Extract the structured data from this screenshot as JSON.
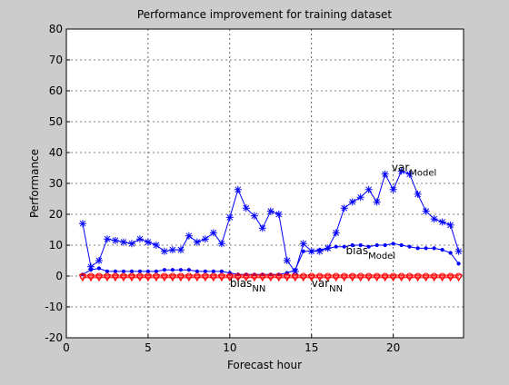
{
  "chart_data": {
    "type": "line",
    "title": "Performance improvement for training dataset",
    "x_label": "Forecast hour",
    "y_label": "Performance",
    "x": [
      1,
      1.5,
      2,
      2.5,
      3,
      3.5,
      4,
      4.5,
      5,
      5.5,
      6,
      6.5,
      7,
      7.5,
      8,
      8.5,
      9,
      9.5,
      10,
      10.5,
      11,
      11.5,
      12,
      12.5,
      13,
      13.5,
      14,
      14.5,
      15,
      15.5,
      16,
      16.5,
      17,
      17.5,
      18,
      18.5,
      19,
      19.5,
      20,
      20.5,
      21,
      21.5,
      22,
      22.5,
      23,
      23.5,
      24
    ],
    "series": [
      {
        "name": "var_Model",
        "color": "#0000ff",
        "marker": "star",
        "values": [
          17,
          3,
          5,
          12,
          11.5,
          11,
          10.5,
          12,
          11,
          10,
          8,
          8.5,
          8.5,
          13,
          11,
          12,
          14,
          10.5,
          19,
          28,
          22,
          19.5,
          15.5,
          21,
          20,
          5,
          1.5,
          10.5,
          8,
          8,
          9,
          14,
          22,
          24,
          25.5,
          28,
          24,
          33,
          28,
          34,
          33,
          26.5,
          21,
          18.5,
          17.5,
          16.5,
          8
        ]
      },
      {
        "name": "bias_Model",
        "color": "#0000ff",
        "marker": "dot",
        "values": [
          0.5,
          2,
          2.5,
          1.5,
          1.5,
          1.5,
          1.5,
          1.5,
          1.5,
          1.5,
          2,
          2,
          2,
          2,
          1.5,
          1.5,
          1.5,
          1.5,
          1,
          0.5,
          0.5,
          0.5,
          0.5,
          0.5,
          0.5,
          1,
          2,
          8,
          8,
          8.5,
          9,
          9.5,
          9.5,
          10,
          10,
          9.5,
          10,
          10,
          10.5,
          10,
          9.5,
          9,
          9,
          9,
          8.5,
          7.5,
          4
        ]
      },
      {
        "name": "var_NN",
        "color": "#ff0000",
        "marker": "triangle-down",
        "values": [
          -0.5,
          -0.5,
          -0.5,
          -0.5,
          -0.5,
          -0.5,
          -0.5,
          -0.5,
          -0.5,
          -0.5,
          -0.5,
          -0.5,
          -0.5,
          -0.5,
          -0.5,
          -0.5,
          -0.5,
          -0.5,
          -0.5,
          -0.5,
          -0.5,
          -0.5,
          -0.5,
          -0.5,
          -0.5,
          -0.5,
          -0.5,
          -0.5,
          -0.5,
          -0.5,
          -0.5,
          -0.5,
          -0.5,
          -0.5,
          -0.5,
          -0.5,
          -0.5,
          -0.5,
          -0.5,
          -0.5,
          -0.5,
          -0.5,
          -0.5,
          -0.5,
          -0.5,
          -0.5,
          -0.5
        ]
      },
      {
        "name": "bias_NN",
        "color": "#ff0000",
        "marker": "circle",
        "values": [
          0,
          0,
          0,
          0,
          0,
          0,
          0,
          0,
          0,
          0,
          0,
          0,
          0,
          0,
          0,
          0,
          0,
          0,
          0,
          0,
          0,
          0,
          0,
          0,
          0,
          0,
          0,
          0,
          0,
          0,
          0,
          0,
          0,
          0,
          0,
          0,
          0,
          0,
          0,
          0,
          0,
          0,
          0,
          0,
          0,
          0,
          0
        ]
      }
    ],
    "annotations": [
      {
        "text": "var",
        "subscript": "Model"
      },
      {
        "text": "bias",
        "subscript": "Model"
      },
      {
        "text": "bias",
        "subscript": "NN"
      },
      {
        "text": "var",
        "subscript": "NN"
      }
    ],
    "xlim": [
      0,
      24.3
    ],
    "ylim": [
      -20,
      80
    ],
    "xticks": [
      0,
      5,
      10,
      15,
      20
    ],
    "yticks": [
      -20,
      -10,
      0,
      10,
      20,
      30,
      40,
      50,
      60,
      70,
      80
    ],
    "grid": true
  }
}
